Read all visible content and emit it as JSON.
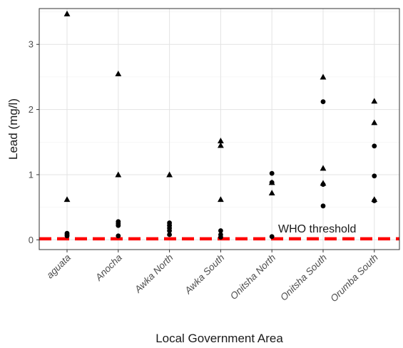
{
  "chart_data": {
    "type": "scatter",
    "title": "",
    "xlabel": "Local Government Area",
    "ylabel": "Lead (mg/l)",
    "categories": [
      "aguata",
      "Anocha",
      "Awka North",
      "Awka South",
      "Onitsha North",
      "Onitsha South",
      "Orumba South"
    ],
    "ylim": [
      -0.15,
      3.55
    ],
    "yticks": [
      0,
      1,
      2,
      3
    ],
    "grid": true,
    "series": [
      {
        "marker": "triangle",
        "points": [
          {
            "x": "aguata",
            "y": 3.47
          },
          {
            "x": "aguata",
            "y": 0.62
          },
          {
            "x": "Anocha",
            "y": 2.55
          },
          {
            "x": "Anocha",
            "y": 1.0
          },
          {
            "x": "Awka North",
            "y": 1.0
          },
          {
            "x": "Awka South",
            "y": 1.52
          },
          {
            "x": "Awka South",
            "y": 1.45
          },
          {
            "x": "Awka South",
            "y": 0.62
          },
          {
            "x": "Onitsha North",
            "y": 0.88
          },
          {
            "x": "Onitsha North",
            "y": 0.72
          },
          {
            "x": "Onitsha South",
            "y": 2.5
          },
          {
            "x": "Onitsha South",
            "y": 1.1
          },
          {
            "x": "Onitsha South",
            "y": 0.87
          },
          {
            "x": "Orumba South",
            "y": 2.13
          },
          {
            "x": "Orumba South",
            "y": 1.8
          },
          {
            "x": "Orumba South",
            "y": 0.62
          }
        ]
      },
      {
        "marker": "circle",
        "points": [
          {
            "x": "aguata",
            "y": 0.1
          },
          {
            "x": "aguata",
            "y": 0.08
          },
          {
            "x": "aguata",
            "y": 0.06
          },
          {
            "x": "Anocha",
            "y": 0.28
          },
          {
            "x": "Anocha",
            "y": 0.25
          },
          {
            "x": "Anocha",
            "y": 0.22
          },
          {
            "x": "Anocha",
            "y": 0.06
          },
          {
            "x": "Awka North",
            "y": 0.26
          },
          {
            "x": "Awka North",
            "y": 0.22
          },
          {
            "x": "Awka North",
            "y": 0.18
          },
          {
            "x": "Awka North",
            "y": 0.14
          },
          {
            "x": "Awka North",
            "y": 0.08
          },
          {
            "x": "Awka South",
            "y": 0.14
          },
          {
            "x": "Awka South",
            "y": 0.08
          },
          {
            "x": "Awka South",
            "y": 0.04
          },
          {
            "x": "Onitsha North",
            "y": 1.02
          },
          {
            "x": "Onitsha North",
            "y": 0.88
          },
          {
            "x": "Onitsha North",
            "y": 0.05
          },
          {
            "x": "Onitsha South",
            "y": 2.12
          },
          {
            "x": "Onitsha South",
            "y": 0.85
          },
          {
            "x": "Onitsha South",
            "y": 0.52
          },
          {
            "x": "Orumba South",
            "y": 1.44
          },
          {
            "x": "Orumba South",
            "y": 0.98
          },
          {
            "x": "Orumba South",
            "y": 0.6
          }
        ]
      }
    ],
    "reference_line": {
      "y": 0.015,
      "style": "dashed",
      "color": "#ff0000",
      "label": "WHO threshold"
    }
  }
}
